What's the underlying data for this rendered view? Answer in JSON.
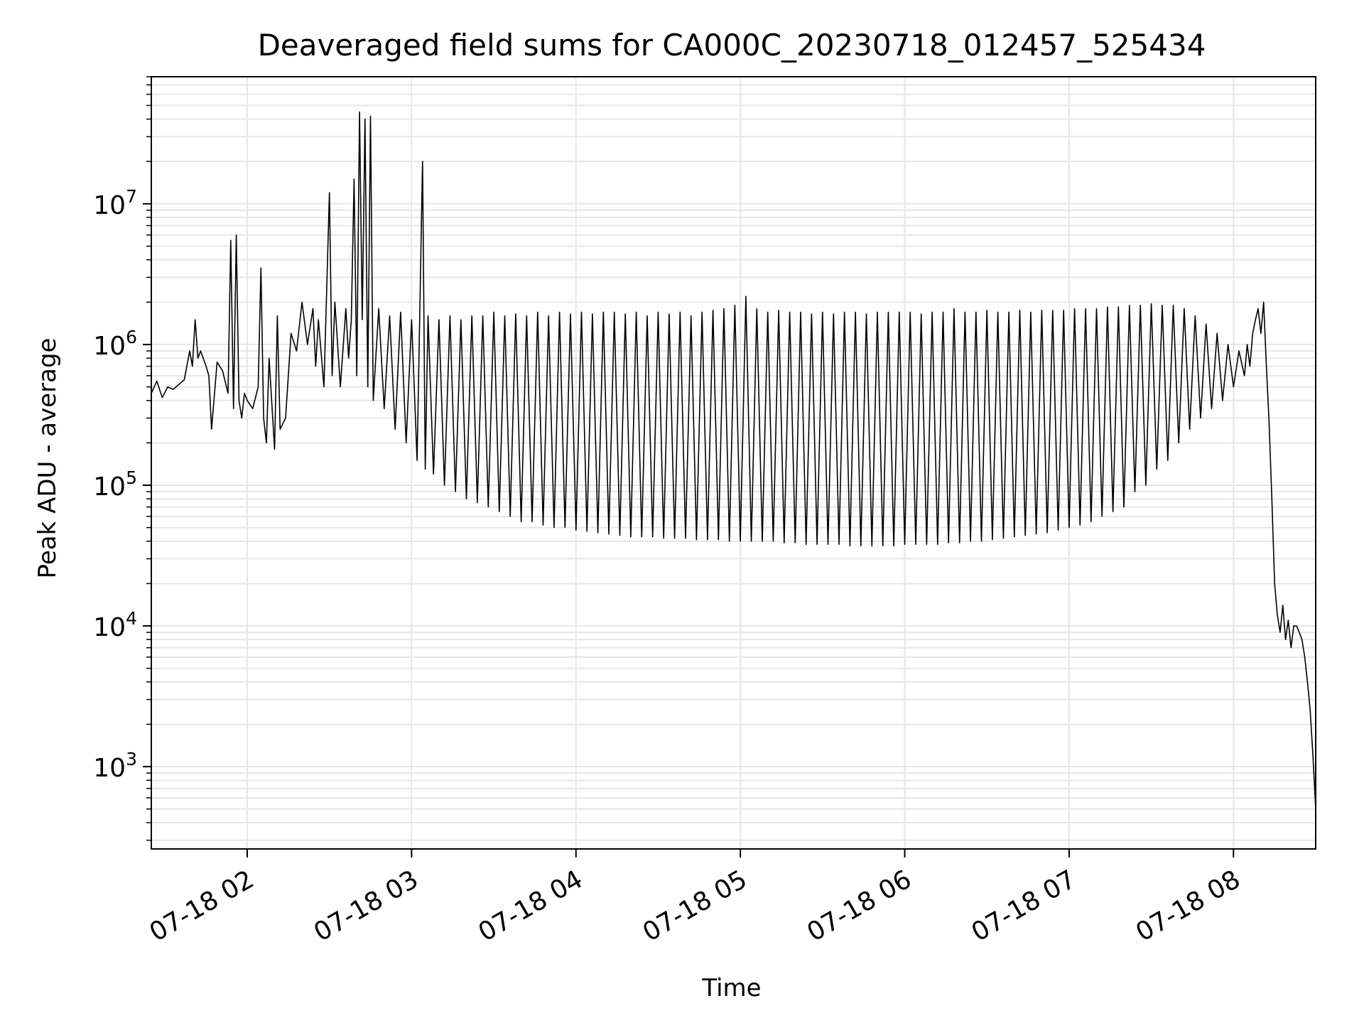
{
  "chart_data": {
    "type": "line",
    "title": "Deaveraged field sums for CA000C_20230718_012457_525434",
    "xlabel": "Time",
    "ylabel": "Peak ADU - average",
    "y_scale": "log",
    "grid": true,
    "legend": "none",
    "x_range": [
      "07-18 01:25",
      "07-18 08:30"
    ],
    "ylim": [
      260,
      80000000
    ],
    "x_ticks": [
      {
        "time": "07-18 02:00",
        "label": "07-18 02"
      },
      {
        "time": "07-18 03:00",
        "label": "07-18 03"
      },
      {
        "time": "07-18 04:00",
        "label": "07-18 04"
      },
      {
        "time": "07-18 05:00",
        "label": "07-18 05"
      },
      {
        "time": "07-18 06:00",
        "label": "07-18 06"
      },
      {
        "time": "07-18 07:00",
        "label": "07-18 07"
      },
      {
        "time": "07-18 08:00",
        "label": "07-18 08"
      }
    ],
    "y_ticks": [
      {
        "value": 1000,
        "label_base": "10",
        "label_exp": "3"
      },
      {
        "value": 10000,
        "label_base": "10",
        "label_exp": "4"
      },
      {
        "value": 100000,
        "label_base": "10",
        "label_exp": "5"
      },
      {
        "value": 1000000,
        "label_base": "10",
        "label_exp": "6"
      },
      {
        "value": 10000000,
        "label_base": "10",
        "label_exp": "7"
      }
    ],
    "series": [
      {
        "color": "#000000",
        "x": [
          "07-18 01:25",
          "07-18 01:27",
          "07-18 01:29",
          "07-18 01:31",
          "07-18 01:33",
          "07-18 01:35",
          "07-18 01:37",
          "07-18 01:39",
          "07-18 01:40",
          "07-18 01:41",
          "07-18 01:42",
          "07-18 01:43",
          "07-18 01:45",
          "07-18 01:46",
          "07-18 01:47",
          "07-18 01:49",
          "07-18 01:51",
          "07-18 01:53",
          "07-18 01:54",
          "07-18 01:55",
          "07-18 01:56",
          "07-18 01:57",
          "07-18 01:58",
          "07-18 01:59",
          "07-18 02:00",
          "07-18 02:02",
          "07-18 02:04",
          "07-18 02:05",
          "07-18 02:06",
          "07-18 02:07",
          "07-18 02:08",
          "07-18 02:10",
          "07-18 02:11",
          "07-18 02:12",
          "07-18 02:14",
          "07-18 02:16",
          "07-18 02:18",
          "07-18 02:20",
          "07-18 02:22",
          "07-18 02:24",
          "07-18 02:25",
          "07-18 02:26",
          "07-18 02:28",
          "07-18 02:30",
          "07-18 02:31",
          "07-18 02:32",
          "07-18 02:34",
          "07-18 02:36",
          "07-18 02:37",
          "07-18 02:38",
          "07-18 02:39",
          "07-18 02:40",
          "07-18 02:41",
          "07-18 02:42",
          "07-18 02:43",
          "07-18 02:44",
          "07-18 02:45",
          "07-18 02:46",
          "07-18 02:48",
          "07-18 02:50",
          "07-18 02:52",
          "07-18 02:54",
          "07-18 02:56",
          "07-18 02:58",
          "07-18 03:00",
          "07-18 03:02",
          "07-18 03:04",
          "07-18 03:05",
          "07-18 03:06",
          "07-18 03:08",
          "07-18 03:10",
          "07-18 03:12",
          "07-18 03:14",
          "07-18 03:16",
          "07-18 03:18",
          "07-18 03:20",
          "07-18 03:22",
          "07-18 03:24",
          "07-18 03:26",
          "07-18 03:28",
          "07-18 03:30",
          "07-18 03:32",
          "07-18 03:34",
          "07-18 03:36",
          "07-18 03:38",
          "07-18 03:40",
          "07-18 03:42",
          "07-18 03:44",
          "07-18 03:46",
          "07-18 03:48",
          "07-18 03:50",
          "07-18 03:52",
          "07-18 03:54",
          "07-18 03:56",
          "07-18 03:58",
          "07-18 04:00",
          "07-18 04:02",
          "07-18 04:04",
          "07-18 04:06",
          "07-18 04:08",
          "07-18 04:10",
          "07-18 04:12",
          "07-18 04:14",
          "07-18 04:16",
          "07-18 04:18",
          "07-18 04:20",
          "07-18 04:22",
          "07-18 04:24",
          "07-18 04:26",
          "07-18 04:28",
          "07-18 04:30",
          "07-18 04:32",
          "07-18 04:34",
          "07-18 04:36",
          "07-18 04:38",
          "07-18 04:40",
          "07-18 04:42",
          "07-18 04:44",
          "07-18 04:46",
          "07-18 04:48",
          "07-18 04:50",
          "07-18 04:52",
          "07-18 04:54",
          "07-18 04:56",
          "07-18 04:58",
          "07-18 05:00",
          "07-18 05:02",
          "07-18 05:04",
          "07-18 05:06",
          "07-18 05:08",
          "07-18 05:10",
          "07-18 05:12",
          "07-18 05:14",
          "07-18 05:16",
          "07-18 05:18",
          "07-18 05:20",
          "07-18 05:22",
          "07-18 05:24",
          "07-18 05:26",
          "07-18 05:28",
          "07-18 05:30",
          "07-18 05:32",
          "07-18 05:34",
          "07-18 05:36",
          "07-18 05:38",
          "07-18 05:40",
          "07-18 05:42",
          "07-18 05:44",
          "07-18 05:46",
          "07-18 05:48",
          "07-18 05:50",
          "07-18 05:52",
          "07-18 05:54",
          "07-18 05:56",
          "07-18 05:58",
          "07-18 06:00",
          "07-18 06:02",
          "07-18 06:04",
          "07-18 06:06",
          "07-18 06:08",
          "07-18 06:10",
          "07-18 06:12",
          "07-18 06:14",
          "07-18 06:16",
          "07-18 06:18",
          "07-18 06:20",
          "07-18 06:22",
          "07-18 06:24",
          "07-18 06:26",
          "07-18 06:28",
          "07-18 06:30",
          "07-18 06:32",
          "07-18 06:34",
          "07-18 06:36",
          "07-18 06:38",
          "07-18 06:40",
          "07-18 06:42",
          "07-18 06:44",
          "07-18 06:46",
          "07-18 06:48",
          "07-18 06:50",
          "07-18 06:52",
          "07-18 06:54",
          "07-18 06:56",
          "07-18 06:58",
          "07-18 07:00",
          "07-18 07:02",
          "07-18 07:04",
          "07-18 07:06",
          "07-18 07:08",
          "07-18 07:10",
          "07-18 07:12",
          "07-18 07:14",
          "07-18 07:16",
          "07-18 07:18",
          "07-18 07:20",
          "07-18 07:22",
          "07-18 07:24",
          "07-18 07:26",
          "07-18 07:28",
          "07-18 07:30",
          "07-18 07:32",
          "07-18 07:34",
          "07-18 07:36",
          "07-18 07:38",
          "07-18 07:40",
          "07-18 07:42",
          "07-18 07:44",
          "07-18 07:46",
          "07-18 07:48",
          "07-18 07:50",
          "07-18 07:52",
          "07-18 07:54",
          "07-18 07:56",
          "07-18 07:58",
          "07-18 08:00",
          "07-18 08:02",
          "07-18 08:04",
          "07-18 08:05",
          "07-18 08:06",
          "07-18 08:07",
          "07-18 08:08",
          "07-18 08:09",
          "07-18 08:10",
          "07-18 08:11",
          "07-18 08:12",
          "07-18 08:13",
          "07-18 08:14",
          "07-18 08:15",
          "07-18 08:16",
          "07-18 08:17",
          "07-18 08:18",
          "07-18 08:19",
          "07-18 08:20",
          "07-18 08:21",
          "07-18 08:22",
          "07-18 08:23",
          "07-18 08:24",
          "07-18 08:25",
          "07-18 08:26",
          "07-18 08:27",
          "07-18 08:28",
          "07-18 08:29",
          "07-18 08:30"
        ],
        "y": [
          450000,
          550000,
          420000,
          500000,
          480000,
          520000,
          560000,
          900000,
          700000,
          1500000,
          800000,
          900000,
          700000,
          600000,
          250000,
          750000,
          650000,
          450000,
          5500000,
          350000,
          6000000,
          400000,
          300000,
          450000,
          400000,
          350000,
          500000,
          3500000,
          300000,
          200000,
          800000,
          180000,
          1600000,
          250000,
          300000,
          1200000,
          900000,
          2000000,
          1000000,
          1800000,
          700000,
          1500000,
          500000,
          12000000,
          600000,
          2000000,
          500000,
          1800000,
          800000,
          1500000,
          15000000,
          600000,
          45000000,
          1500000,
          40000000,
          500000,
          42000000,
          400000,
          1800000,
          350000,
          1600000,
          250000,
          1700000,
          200000,
          1500000,
          150000,
          20000000,
          130000,
          1600000,
          120000,
          1500000,
          100000,
          1600000,
          90000,
          1500000,
          80000,
          1600000,
          75000,
          1600000,
          70000,
          1700000,
          65000,
          1600000,
          60000,
          1650000,
          55000,
          1600000,
          55000,
          1700000,
          52000,
          1600000,
          50000,
          1700000,
          50000,
          1650000,
          48000,
          1700000,
          47000,
          1650000,
          46000,
          1700000,
          45000,
          1700000,
          44000,
          1650000,
          43000,
          1700000,
          43000,
          1600000,
          43000,
          1700000,
          42000,
          1650000,
          42000,
          1700000,
          42000,
          1600000,
          41000,
          1700000,
          41000,
          1750000,
          41000,
          1800000,
          40000,
          1900000,
          40000,
          2200000,
          40000,
          1800000,
          40000,
          1700000,
          40000,
          1750000,
          39000,
          1700000,
          39000,
          1700000,
          38000,
          1650000,
          38000,
          1700000,
          38000,
          1650000,
          38000,
          1700000,
          37000,
          1700000,
          37000,
          1650000,
          37000,
          1700000,
          37000,
          1700000,
          37000,
          1700000,
          38000,
          1700000,
          38000,
          1650000,
          38000,
          1700000,
          38000,
          1700000,
          39000,
          1800000,
          39000,
          1700000,
          40000,
          1700000,
          40000,
          1750000,
          41000,
          1700000,
          42000,
          1700000,
          43000,
          1750000,
          44000,
          1700000,
          45000,
          1750000,
          46000,
          1750000,
          48000,
          1750000,
          50000,
          1800000,
          52000,
          1800000,
          55000,
          1800000,
          60000,
          1850000,
          65000,
          1850000,
          70000,
          1900000,
          90000,
          1900000,
          100000,
          1950000,
          130000,
          1900000,
          150000,
          1900000,
          200000,
          1800000,
          250000,
          1600000,
          300000,
          1400000,
          350000,
          1200000,
          400000,
          1000000,
          500000,
          900000,
          600000,
          1000000,
          700000,
          1200000,
          1500000,
          1800000,
          1200000,
          2000000,
          700000,
          280000,
          80000,
          20000,
          12000,
          9000,
          14000,
          8000,
          11000,
          7000,
          10000,
          10000,
          9000,
          8000,
          6000,
          4000,
          2500,
          1200,
          500
        ]
      }
    ]
  }
}
